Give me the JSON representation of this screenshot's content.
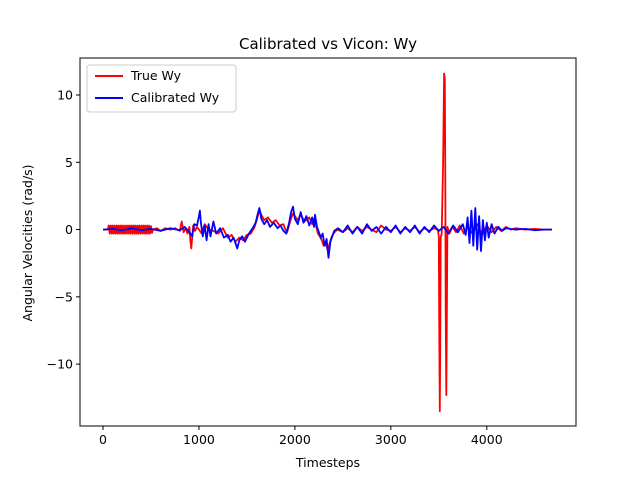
{
  "chart_data": {
    "type": "line",
    "title": "Calibrated vs Vicon: Wy",
    "xlabel": "Timesteps",
    "ylabel": "Angular Velocities (rad/s)",
    "xlim": [
      -240,
      4930
    ],
    "ylim": [
      -14.6,
      12.75
    ],
    "xticks": [
      0,
      1000,
      2000,
      3000,
      4000
    ],
    "yticks": [
      -10,
      -5,
      0,
      5,
      10
    ],
    "grid": false,
    "legend_position": "top-left",
    "series": [
      {
        "name": "True Wy",
        "color": "#ff0000",
        "points": [
          [
            0,
            0
          ],
          [
            50,
            0
          ],
          [
            60,
            0.3
          ],
          [
            70,
            -0.3
          ],
          [
            80,
            0.3
          ],
          [
            90,
            -0.3
          ],
          [
            100,
            0.3
          ],
          [
            110,
            -0.3
          ],
          [
            120,
            0.3
          ],
          [
            130,
            -0.3
          ],
          [
            140,
            0.3
          ],
          [
            150,
            -0.3
          ],
          [
            160,
            0.3
          ],
          [
            170,
            -0.3
          ],
          [
            180,
            0.3
          ],
          [
            190,
            -0.3
          ],
          [
            200,
            0.3
          ],
          [
            210,
            -0.3
          ],
          [
            220,
            0.3
          ],
          [
            230,
            -0.3
          ],
          [
            240,
            0.3
          ],
          [
            250,
            -0.3
          ],
          [
            260,
            0.3
          ],
          [
            270,
            -0.3
          ],
          [
            280,
            0.3
          ],
          [
            290,
            -0.3
          ],
          [
            300,
            0.3
          ],
          [
            310,
            -0.3
          ],
          [
            320,
            0.3
          ],
          [
            330,
            -0.3
          ],
          [
            340,
            0.3
          ],
          [
            350,
            -0.3
          ],
          [
            360,
            0.3
          ],
          [
            370,
            -0.3
          ],
          [
            380,
            0.3
          ],
          [
            390,
            -0.3
          ],
          [
            400,
            0.3
          ],
          [
            410,
            -0.3
          ],
          [
            420,
            0.3
          ],
          [
            430,
            -0.3
          ],
          [
            440,
            0.3
          ],
          [
            450,
            -0.3
          ],
          [
            460,
            0.3
          ],
          [
            470,
            -0.3
          ],
          [
            480,
            0.3
          ],
          [
            490,
            -0.3
          ],
          [
            500,
            0.25
          ],
          [
            510,
            -0.25
          ],
          [
            520,
            0
          ],
          [
            560,
            0.1
          ],
          [
            600,
            -0.1
          ],
          [
            650,
            0.1
          ],
          [
            700,
            0
          ],
          [
            750,
            0.1
          ],
          [
            800,
            -0.1
          ],
          [
            820,
            0.6
          ],
          [
            840,
            -0.2
          ],
          [
            860,
            0.1
          ],
          [
            880,
            -0.3
          ],
          [
            900,
            0.2
          ],
          [
            910,
            -0.8
          ],
          [
            920,
            -1.4
          ],
          [
            930,
            -0.6
          ],
          [
            940,
            0.3
          ],
          [
            960,
            -0.1
          ],
          [
            980,
            0.2
          ],
          [
            1000,
            0
          ],
          [
            1030,
            -0.3
          ],
          [
            1060,
            0.4
          ],
          [
            1100,
            0
          ],
          [
            1150,
            -0.1
          ],
          [
            1200,
            -0.3
          ],
          [
            1250,
            0.1
          ],
          [
            1300,
            -0.6
          ],
          [
            1340,
            -0.4
          ],
          [
            1380,
            -0.9
          ],
          [
            1420,
            -0.6
          ],
          [
            1460,
            -0.8
          ],
          [
            1500,
            -0.4
          ],
          [
            1540,
            -0.3
          ],
          [
            1580,
            0.2
          ],
          [
            1610,
            0.9
          ],
          [
            1630,
            1.5
          ],
          [
            1650,
            1.1
          ],
          [
            1680,
            0.7
          ],
          [
            1720,
            0.9
          ],
          [
            1760,
            0.5
          ],
          [
            1800,
            0.7
          ],
          [
            1840,
            0.3
          ],
          [
            1880,
            0.4
          ],
          [
            1900,
            0
          ],
          [
            1920,
            -0.2
          ],
          [
            1950,
            0.6
          ],
          [
            1980,
            1.2
          ],
          [
            2000,
            1.0
          ],
          [
            2030,
            0.7
          ],
          [
            2060,
            1.1
          ],
          [
            2100,
            0.6
          ],
          [
            2150,
            0.9
          ],
          [
            2180,
            0.4
          ],
          [
            2200,
            0.8
          ],
          [
            2220,
            0.3
          ],
          [
            2240,
            -0.3
          ],
          [
            2260,
            -0.5
          ],
          [
            2280,
            -0.8
          ],
          [
            2300,
            -1.2
          ],
          [
            2320,
            -0.9
          ],
          [
            2340,
            -1.5
          ],
          [
            2360,
            -1.1
          ],
          [
            2380,
            -0.6
          ],
          [
            2400,
            -0.3
          ],
          [
            2440,
            0
          ],
          [
            2500,
            -0.2
          ],
          [
            2550,
            0.1
          ],
          [
            2600,
            -0.2
          ],
          [
            2650,
            0.2
          ],
          [
            2700,
            -0.1
          ],
          [
            2750,
            0.2
          ],
          [
            2800,
            0
          ],
          [
            2850,
            -0.2
          ],
          [
            2900,
            0.3
          ],
          [
            2950,
            0
          ],
          [
            3000,
            -0.1
          ],
          [
            3050,
            0.2
          ],
          [
            3100,
            -0.2
          ],
          [
            3150,
            0.1
          ],
          [
            3200,
            -0.1
          ],
          [
            3250,
            0.2
          ],
          [
            3300,
            -0.2
          ],
          [
            3350,
            0.1
          ],
          [
            3400,
            -0.1
          ],
          [
            3450,
            0.1
          ],
          [
            3490,
            0
          ],
          [
            3500,
            -0.5
          ],
          [
            3505,
            -8.0
          ],
          [
            3510,
            -13.5
          ],
          [
            3515,
            -9.0
          ],
          [
            3520,
            -0.6
          ],
          [
            3530,
            -0.3
          ],
          [
            3545,
            5.0
          ],
          [
            3555,
            11.6
          ],
          [
            3562,
            11.2
          ],
          [
            3568,
            4.0
          ],
          [
            3572,
            -6.0
          ],
          [
            3578,
            -12.3
          ],
          [
            3583,
            -7.0
          ],
          [
            3590,
            0.2
          ],
          [
            3610,
            -0.3
          ],
          [
            3640,
            0.2
          ],
          [
            3680,
            -0.2
          ],
          [
            3720,
            0.3
          ],
          [
            3760,
            -0.3
          ],
          [
            3800,
            0.2
          ],
          [
            3850,
            -0.3
          ],
          [
            3900,
            0.4
          ],
          [
            3950,
            -0.4
          ],
          [
            4000,
            0.3
          ],
          [
            4050,
            -0.2
          ],
          [
            4100,
            0.2
          ],
          [
            4150,
            -0.1
          ],
          [
            4200,
            0.2
          ],
          [
            4250,
            0
          ],
          [
            4300,
            0.1
          ],
          [
            4400,
            0
          ],
          [
            4500,
            0.05
          ],
          [
            4600,
            0
          ],
          [
            4680,
            0
          ]
        ]
      },
      {
        "name": "Calibrated Wy",
        "color": "#0000ff",
        "points": [
          [
            0,
            0
          ],
          [
            100,
            0.05
          ],
          [
            200,
            -0.05
          ],
          [
            300,
            0.1
          ],
          [
            400,
            -0.05
          ],
          [
            500,
            0.05
          ],
          [
            600,
            -0.1
          ],
          [
            700,
            0.1
          ],
          [
            800,
            -0.05
          ],
          [
            850,
            0.2
          ],
          [
            900,
            -0.2
          ],
          [
            930,
            -0.5
          ],
          [
            950,
            0.4
          ],
          [
            980,
            0.3
          ],
          [
            1000,
            1.0
          ],
          [
            1010,
            1.4
          ],
          [
            1020,
            0.5
          ],
          [
            1040,
            -0.5
          ],
          [
            1060,
            0.3
          ],
          [
            1080,
            -0.8
          ],
          [
            1100,
            0.4
          ],
          [
            1120,
            -0.5
          ],
          [
            1150,
            0.6
          ],
          [
            1180,
            -0.3
          ],
          [
            1220,
            0.1
          ],
          [
            1260,
            -0.6
          ],
          [
            1300,
            -0.4
          ],
          [
            1330,
            -0.9
          ],
          [
            1360,
            -0.6
          ],
          [
            1400,
            -1.4
          ],
          [
            1420,
            -0.8
          ],
          [
            1450,
            -0.5
          ],
          [
            1480,
            -0.9
          ],
          [
            1520,
            -0.3
          ],
          [
            1560,
            0.1
          ],
          [
            1590,
            0.5
          ],
          [
            1610,
            1.1
          ],
          [
            1630,
            1.6
          ],
          [
            1650,
            0.8
          ],
          [
            1680,
            0.4
          ],
          [
            1710,
            0.7
          ],
          [
            1740,
            0.2
          ],
          [
            1780,
            0.5
          ],
          [
            1820,
            0.1
          ],
          [
            1850,
            0.3
          ],
          [
            1880,
            -0.1
          ],
          [
            1910,
            -0.3
          ],
          [
            1940,
            0.5
          ],
          [
            1960,
            1.3
          ],
          [
            1980,
            1.7
          ],
          [
            2000,
            0.8
          ],
          [
            2030,
            0.4
          ],
          [
            2060,
            1.3
          ],
          [
            2090,
            0.5
          ],
          [
            2120,
            1.0
          ],
          [
            2150,
            0.3
          ],
          [
            2180,
            0.9
          ],
          [
            2200,
            0.2
          ],
          [
            2210,
            1.1
          ],
          [
            2230,
            0.2
          ],
          [
            2250,
            -0.2
          ],
          [
            2270,
            -0.6
          ],
          [
            2290,
            -0.3
          ],
          [
            2310,
            -1.2
          ],
          [
            2330,
            -0.7
          ],
          [
            2350,
            -2.1
          ],
          [
            2370,
            -0.9
          ],
          [
            2390,
            -0.5
          ],
          [
            2410,
            -0.1
          ],
          [
            2450,
            0.1
          ],
          [
            2500,
            -0.2
          ],
          [
            2550,
            0.3
          ],
          [
            2600,
            -0.3
          ],
          [
            2650,
            0.2
          ],
          [
            2700,
            -0.3
          ],
          [
            2750,
            0.4
          ],
          [
            2800,
            -0.1
          ],
          [
            2850,
            0.2
          ],
          [
            2900,
            -0.3
          ],
          [
            2950,
            0.2
          ],
          [
            3000,
            -0.2
          ],
          [
            3050,
            0.3
          ],
          [
            3100,
            -0.3
          ],
          [
            3150,
            0.2
          ],
          [
            3200,
            -0.2
          ],
          [
            3250,
            0.3
          ],
          [
            3300,
            -0.3
          ],
          [
            3350,
            0.2
          ],
          [
            3400,
            -0.2
          ],
          [
            3450,
            0.3
          ],
          [
            3500,
            -0.1
          ],
          [
            3550,
            0.2
          ],
          [
            3600,
            -0.3
          ],
          [
            3650,
            0.3
          ],
          [
            3700,
            -0.2
          ],
          [
            3750,
            0.4
          ],
          [
            3780,
            -0.4
          ],
          [
            3800,
            0.9
          ],
          [
            3820,
            -1.0
          ],
          [
            3840,
            1.4
          ],
          [
            3860,
            -1.2
          ],
          [
            3880,
            1.6
          ],
          [
            3900,
            -1.5
          ],
          [
            3920,
            1.0
          ],
          [
            3940,
            -1.6
          ],
          [
            3960,
            0.7
          ],
          [
            3980,
            -0.8
          ],
          [
            4000,
            0.5
          ],
          [
            4020,
            -0.6
          ],
          [
            4050,
            0.4
          ],
          [
            4080,
            -0.3
          ],
          [
            4120,
            0.2
          ],
          [
            4160,
            -0.1
          ],
          [
            4200,
            0.1
          ],
          [
            4300,
            0
          ],
          [
            4400,
            0.05
          ],
          [
            4500,
            -0.05
          ],
          [
            4600,
            0
          ],
          [
            4680,
            0
          ]
        ]
      }
    ]
  }
}
